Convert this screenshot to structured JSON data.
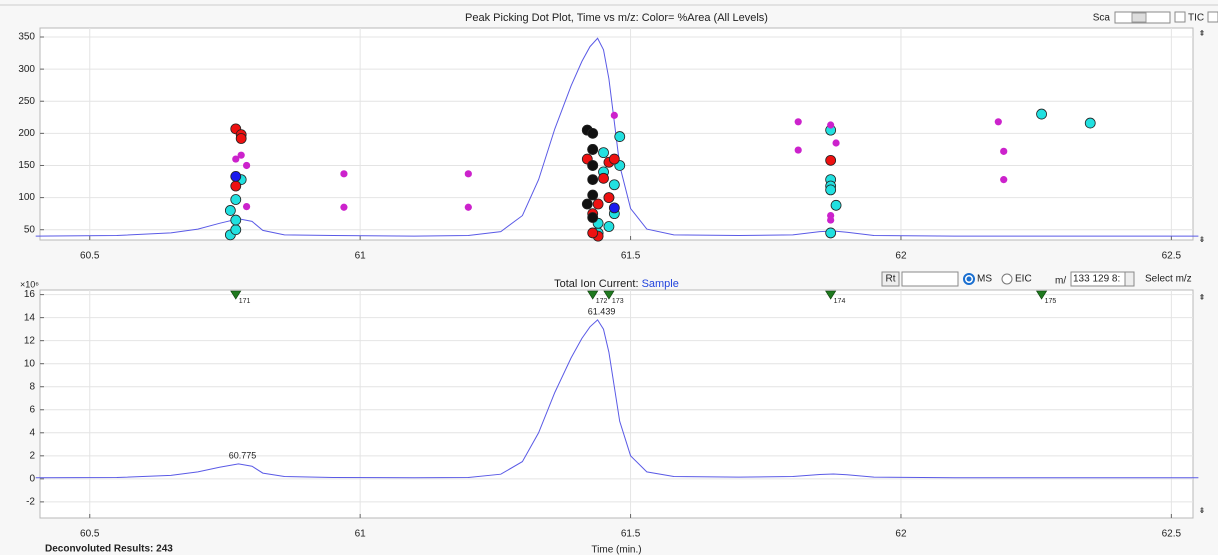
{
  "chart_data": [
    {
      "type": "scatter",
      "title": "Peak Picking Dot Plot, Time vs m/z: Color= %Area  (All Levels)",
      "xlim": [
        60.408,
        62.54
      ],
      "ylim": [
        34,
        364
      ],
      "xticks": [
        60.5,
        61,
        61.5,
        62,
        62.5
      ],
      "yticks": [
        50,
        100,
        150,
        200,
        250,
        300,
        350
      ],
      "grid": true,
      "series": [
        {
          "color": "#22e0e0",
          "x": [
            60.76,
            60.77,
            60.77,
            60.76,
            60.77,
            60.78,
            61.42,
            61.43,
            61.44,
            61.44,
            61.45,
            61.45,
            61.46,
            61.47,
            61.47,
            61.48,
            61.48,
            61.46,
            61.87,
            61.87,
            61.87,
            61.87,
            61.88,
            61.87,
            62.26,
            62.35
          ],
          "y": [
            42,
            50,
            65,
            80,
            97,
            128,
            205,
            175,
            45,
            60,
            170,
            140,
            100,
            120,
            75,
            195,
            150,
            55,
            205,
            128,
            118,
            112,
            88,
            45,
            230,
            216
          ]
        },
        {
          "color": "#cc22cc",
          "x": [
            60.77,
            60.78,
            60.79,
            60.97,
            60.97,
            61.2,
            61.2,
            61.47,
            61.81,
            61.81,
            61.87,
            61.88,
            61.87,
            61.87,
            62.18,
            62.19,
            62.19,
            60.79
          ],
          "y": [
            160,
            166,
            150,
            137,
            85,
            137,
            85,
            228,
            218,
            174,
            213,
            185,
            72,
            65,
            218,
            172,
            128,
            86
          ]
        },
        {
          "color": "#ee1111",
          "x": [
            60.77,
            60.78,
            60.78,
            60.77,
            61.42,
            61.43,
            61.43,
            61.44,
            61.44,
            61.45,
            61.46,
            61.46,
            61.47,
            61.43,
            61.87
          ],
          "y": [
            207,
            198,
            192,
            118,
            160,
            150,
            75,
            90,
            40,
            130,
            155,
            100,
            160,
            45,
            158
          ]
        },
        {
          "color": "#111111",
          "x": [
            61.42,
            61.43,
            61.43,
            61.43,
            61.43,
            61.43,
            61.42,
            61.43
          ],
          "y": [
            205,
            200,
            175,
            150,
            128,
            104,
            90,
            69
          ]
        },
        {
          "color": "#1a1aee",
          "x": [
            60.77,
            61.47
          ],
          "y": [
            133,
            84
          ]
        }
      ],
      "line": {
        "color": "#5a5ae6",
        "x": [
          60.4,
          60.55,
          60.65,
          60.7,
          60.74,
          60.775,
          60.8,
          60.82,
          60.86,
          60.95,
          61.1,
          61.2,
          61.26,
          61.3,
          61.33,
          61.36,
          61.39,
          61.41,
          61.425,
          61.439,
          61.45,
          61.46,
          61.47,
          61.48,
          61.5,
          61.53,
          61.58,
          61.7,
          61.8,
          61.85,
          61.875,
          61.9,
          61.95,
          62.1,
          62.3,
          62.55
        ],
        "y": [
          40,
          41,
          45,
          51,
          60,
          67,
          63,
          49,
          42,
          41,
          40,
          41,
          47,
          72,
          128,
          207,
          274,
          312,
          335,
          348,
          330,
          285,
          218,
          150,
          83,
          51,
          42,
          41,
          42,
          47,
          48,
          46,
          41,
          40,
          40,
          40
        ]
      }
    },
    {
      "type": "line",
      "title": "Total Ion Current:",
      "sample_name": "Sample",
      "x_label": "Time (min.)",
      "y_multiplier": "×10⁶",
      "xlim": [
        60.408,
        62.54
      ],
      "ylim": [
        -3.4,
        16.4
      ],
      "xticks": [
        60.5,
        61,
        61.5,
        62,
        62.5
      ],
      "yticks": [
        -2,
        0,
        2,
        4,
        6,
        8,
        10,
        12,
        14,
        16
      ],
      "grid": true,
      "x": [
        60.4,
        60.55,
        60.65,
        60.7,
        60.74,
        60.775,
        60.8,
        60.82,
        60.86,
        60.95,
        61.1,
        61.2,
        61.26,
        61.3,
        61.33,
        61.36,
        61.39,
        61.41,
        61.425,
        61.439,
        61.45,
        61.46,
        61.47,
        61.48,
        61.5,
        61.53,
        61.58,
        61.7,
        61.8,
        61.85,
        61.875,
        61.9,
        61.95,
        62.1,
        62.3,
        62.55
      ],
      "series": [
        {
          "color": "#5a5ae6",
          "values": [
            0.1,
            0.12,
            0.3,
            0.6,
            1.0,
            1.3,
            1.1,
            0.5,
            0.2,
            0.12,
            0.1,
            0.12,
            0.4,
            1.5,
            4.0,
            7.5,
            10.5,
            12.2,
            13.2,
            13.8,
            13.0,
            11.0,
            8.0,
            5.0,
            2.0,
            0.6,
            0.2,
            0.15,
            0.2,
            0.38,
            0.42,
            0.35,
            0.15,
            0.1,
            0.1,
            0.1
          ]
        }
      ],
      "peaks": {
        "x": [
          60.775,
          61.439
        ],
        "y": [
          1.3,
          13.8
        ]
      },
      "markers": {
        "x": [
          60.77,
          61.43,
          61.46,
          61.87,
          62.26
        ],
        "labels": [
          "171",
          "172",
          "173",
          "174",
          "175"
        ],
        "color": "#1f7a1f"
      }
    }
  ],
  "controls": {
    "scale_label": "Sca",
    "tic_label": "TIC",
    "rt_button": "Rt",
    "ms_label": "MS",
    "eic_label": "EIC",
    "mz_label": "m/",
    "mz_input": "133 129 8:",
    "select_button": "Select m/z"
  },
  "footer": {
    "status": "Deconvoluted Results: 243"
  }
}
